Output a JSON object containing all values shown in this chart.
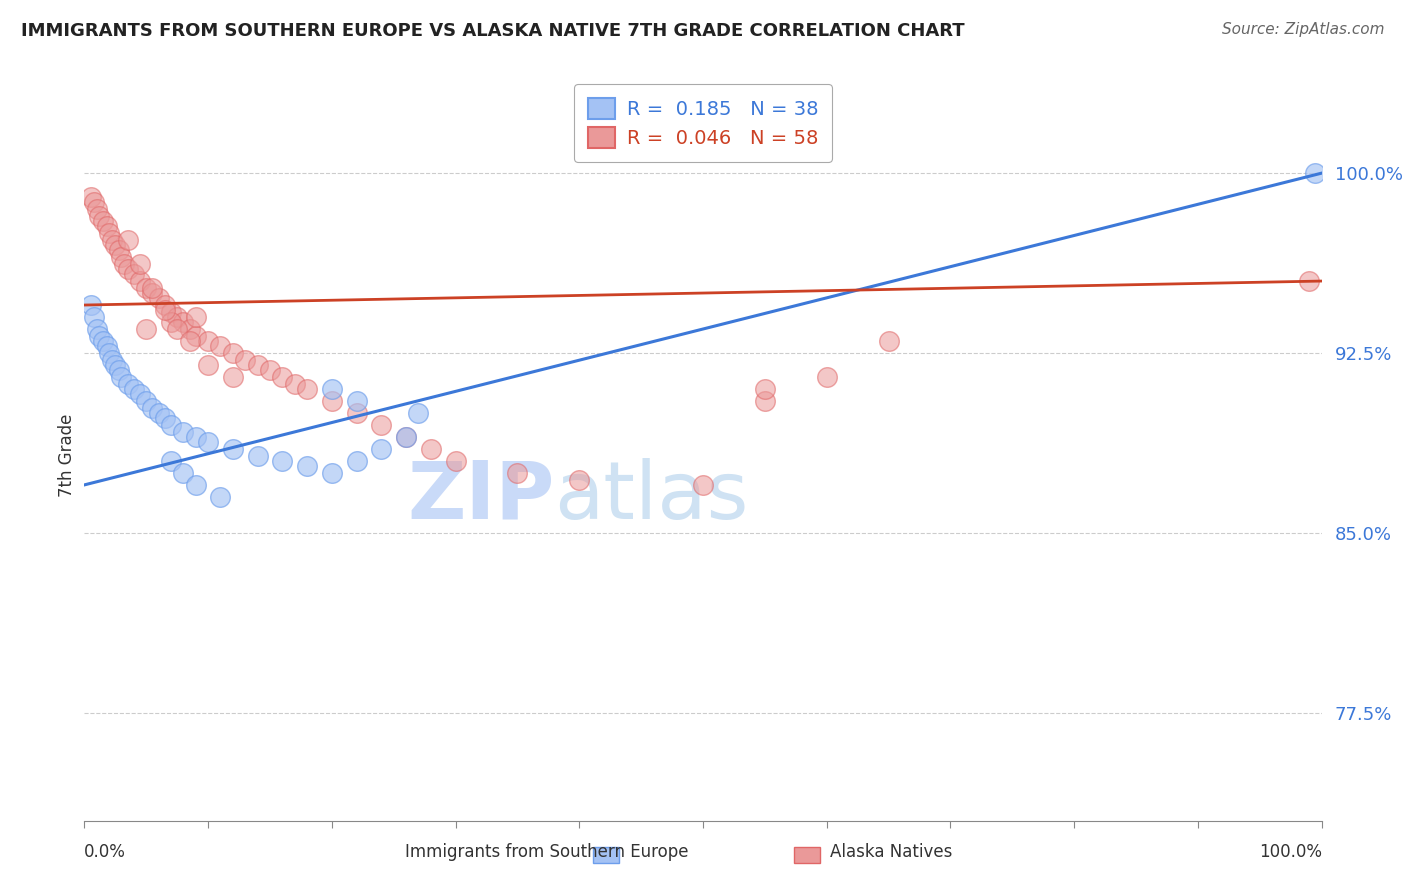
{
  "title": "IMMIGRANTS FROM SOUTHERN EUROPE VS ALASKA NATIVE 7TH GRADE CORRELATION CHART",
  "source": "Source: ZipAtlas.com",
  "ylabel": "7th Grade",
  "xlim": [
    0.0,
    100.0
  ],
  "ylim": [
    73.0,
    103.5
  ],
  "yticks": [
    77.5,
    85.0,
    92.5,
    100.0
  ],
  "ytick_labels": [
    "77.5%",
    "85.0%",
    "92.5%",
    "100.0%"
  ],
  "blue_R": 0.185,
  "blue_N": 38,
  "pink_R": 0.046,
  "pink_N": 58,
  "blue_color": "#a4c2f4",
  "pink_color": "#ea9999",
  "blue_edge_color": "#6d9eeb",
  "pink_edge_color": "#e06666",
  "blue_line_color": "#3c78d8",
  "pink_line_color": "#cc4125",
  "watermark_zip_color": "#c9daf8",
  "watermark_atlas_color": "#cfe2f3",
  "blue_trend_x": [
    0,
    100
  ],
  "blue_trend_y": [
    87.0,
    100.0
  ],
  "pink_trend_x": [
    0,
    100
  ],
  "pink_trend_y": [
    94.5,
    95.5
  ],
  "blue_scatter_x": [
    0.5,
    0.8,
    1.0,
    1.2,
    1.5,
    1.8,
    2.0,
    2.2,
    2.5,
    2.8,
    3.0,
    3.5,
    4.0,
    4.5,
    5.0,
    5.5,
    6.0,
    6.5,
    7.0,
    8.0,
    9.0,
    10.0,
    12.0,
    14.0,
    16.0,
    18.0,
    20.0,
    22.0,
    24.0,
    26.0,
    20.0,
    22.0,
    7.0,
    8.0,
    9.0,
    11.0,
    99.5,
    27.0
  ],
  "blue_scatter_y": [
    94.5,
    94.0,
    93.5,
    93.2,
    93.0,
    92.8,
    92.5,
    92.2,
    92.0,
    91.8,
    91.5,
    91.2,
    91.0,
    90.8,
    90.5,
    90.2,
    90.0,
    89.8,
    89.5,
    89.2,
    89.0,
    88.8,
    88.5,
    88.2,
    88.0,
    87.8,
    87.5,
    88.0,
    88.5,
    89.0,
    91.0,
    90.5,
    88.0,
    87.5,
    87.0,
    86.5,
    100.0,
    90.0
  ],
  "pink_scatter_x": [
    0.5,
    0.8,
    1.0,
    1.2,
    1.5,
    1.8,
    2.0,
    2.2,
    2.5,
    2.8,
    3.0,
    3.2,
    3.5,
    4.0,
    4.5,
    5.0,
    5.5,
    6.0,
    6.5,
    7.0,
    7.5,
    8.0,
    8.5,
    9.0,
    10.0,
    11.0,
    12.0,
    13.0,
    14.0,
    15.0,
    16.0,
    17.0,
    18.0,
    20.0,
    22.0,
    24.0,
    26.0,
    28.0,
    30.0,
    35.0,
    40.0,
    50.0,
    55.0,
    60.0,
    65.0,
    5.0,
    7.0,
    9.0,
    3.5,
    4.5,
    5.5,
    6.5,
    7.5,
    8.5,
    10.0,
    12.0,
    55.0,
    99.0
  ],
  "pink_scatter_y": [
    99.0,
    98.8,
    98.5,
    98.2,
    98.0,
    97.8,
    97.5,
    97.2,
    97.0,
    96.8,
    96.5,
    96.2,
    96.0,
    95.8,
    95.5,
    95.2,
    95.0,
    94.8,
    94.5,
    94.2,
    94.0,
    93.8,
    93.5,
    93.2,
    93.0,
    92.8,
    92.5,
    92.2,
    92.0,
    91.8,
    91.5,
    91.2,
    91.0,
    90.5,
    90.0,
    89.5,
    89.0,
    88.5,
    88.0,
    87.5,
    87.2,
    87.0,
    90.5,
    91.5,
    93.0,
    93.5,
    93.8,
    94.0,
    97.2,
    96.2,
    95.2,
    94.3,
    93.5,
    93.0,
    92.0,
    91.5,
    91.0,
    95.5
  ]
}
